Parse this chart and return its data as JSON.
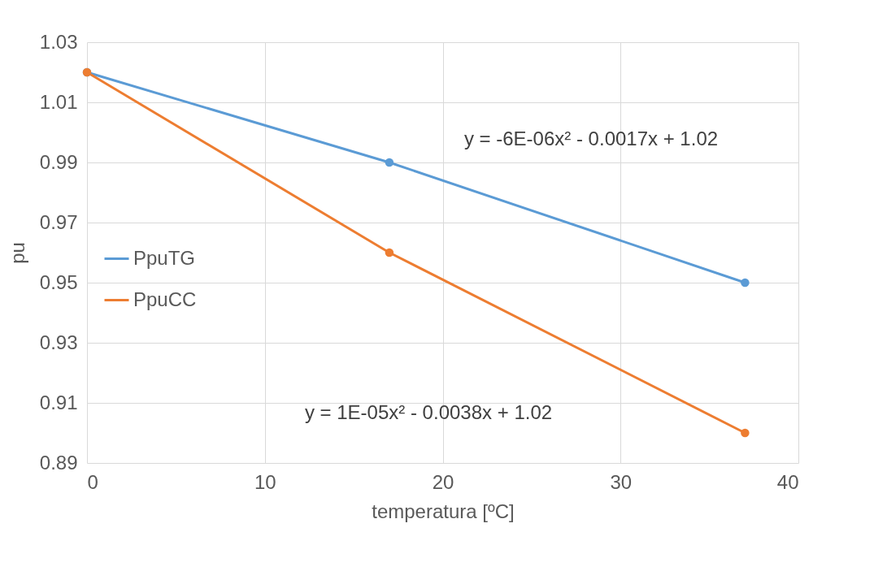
{
  "chart_data": {
    "type": "line",
    "xlabel": "temperatura  [ºC]",
    "ylabel": "pu",
    "x": [
      0,
      17,
      37
    ],
    "series": [
      {
        "name": "PpuTG",
        "color": "#5b9bd5",
        "values": [
          1.02,
          0.99,
          0.95
        ]
      },
      {
        "name": "PpuCC",
        "color": "#ed7d31",
        "values": [
          1.02,
          0.96,
          0.9
        ]
      }
    ],
    "xlim": [
      0,
      40
    ],
    "xticks": [
      0,
      10,
      20,
      30,
      40
    ],
    "ylim": [
      0.89,
      1.03
    ],
    "yticks": [
      0.89,
      0.91,
      0.93,
      0.95,
      0.97,
      0.99,
      1.01,
      1.03
    ],
    "grid": true,
    "legend": "left",
    "marker": "circle",
    "line_style": "solid",
    "annotations": [
      "y = -6E-06x² - 0.0017x + 1.02",
      "y = 1E-05x² - 0.0038x + 1.02"
    ]
  }
}
